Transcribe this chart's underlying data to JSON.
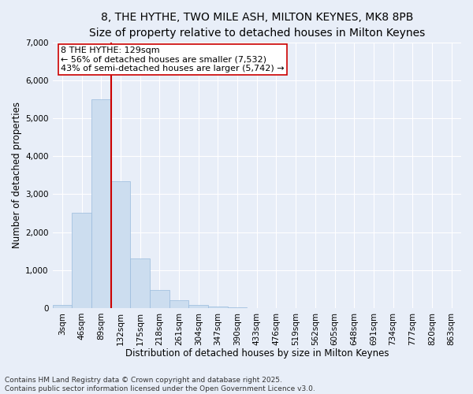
{
  "title_line1": "8, THE HYTHE, TWO MILE ASH, MILTON KEYNES, MK8 8PB",
  "title_line2": "Size of property relative to detached houses in Milton Keynes",
  "xlabel": "Distribution of detached houses by size in Milton Keynes",
  "ylabel": "Number of detached properties",
  "bar_color": "#ccddef",
  "bar_edge_color": "#99bbdd",
  "background_color": "#e8eef8",
  "grid_color": "#ffffff",
  "categories": [
    "3sqm",
    "46sqm",
    "89sqm",
    "132sqm",
    "175sqm",
    "218sqm",
    "261sqm",
    "304sqm",
    "347sqm",
    "390sqm",
    "433sqm",
    "476sqm",
    "519sqm",
    "562sqm",
    "605sqm",
    "648sqm",
    "691sqm",
    "734sqm",
    "777sqm",
    "820sqm",
    "863sqm"
  ],
  "values": [
    80,
    2500,
    5500,
    3350,
    1300,
    480,
    210,
    90,
    40,
    10,
    0,
    0,
    0,
    0,
    0,
    0,
    0,
    0,
    0,
    0,
    0
  ],
  "vline_x": 2.5,
  "vline_color": "#cc0000",
  "annotation_text": "8 THE HYTHE: 129sqm\n← 56% of detached houses are smaller (7,532)\n43% of semi-detached houses are larger (5,742) →",
  "annotation_box_color": "#ffffff",
  "annotation_box_edge_color": "#cc0000",
  "ylim": [
    0,
    7000
  ],
  "yticks": [
    0,
    1000,
    2000,
    3000,
    4000,
    5000,
    6000,
    7000
  ],
  "footnote": "Contains HM Land Registry data © Crown copyright and database right 2025.\nContains public sector information licensed under the Open Government Licence v3.0.",
  "title_fontsize": 10,
  "subtitle_fontsize": 9,
  "axis_label_fontsize": 8.5,
  "tick_fontsize": 7.5,
  "annotation_fontsize": 8,
  "footnote_fontsize": 6.5
}
